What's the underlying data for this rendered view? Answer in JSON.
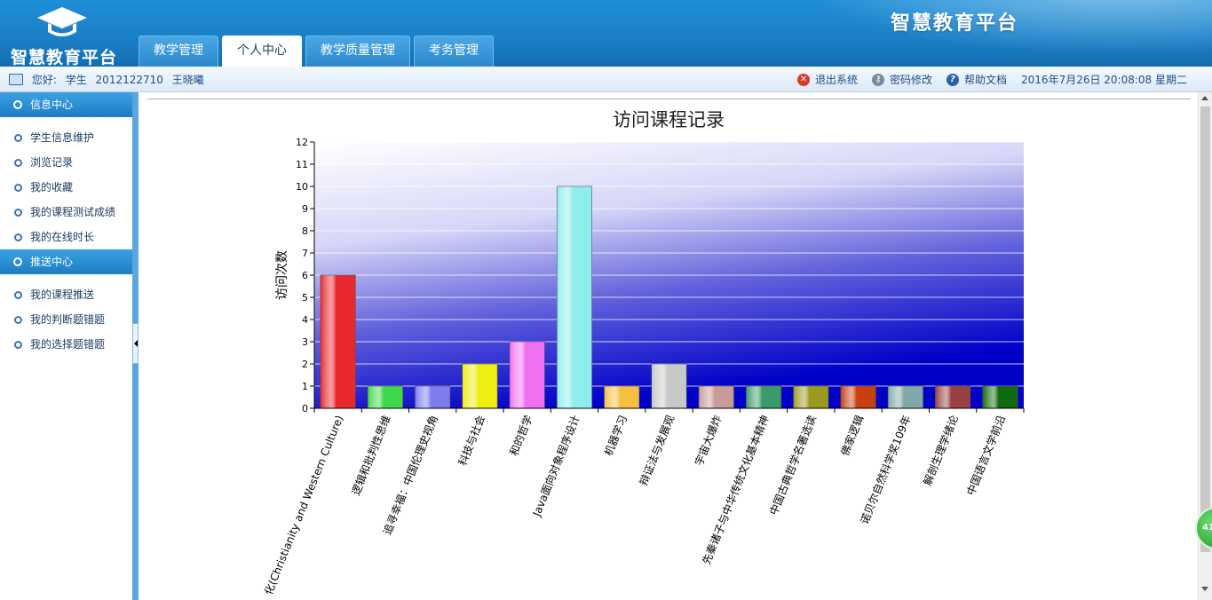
{
  "header": {
    "logo_text": "智慧教育平台",
    "brand_title": "智慧教育平台",
    "tabs": [
      {
        "label": "教学管理",
        "active": false
      },
      {
        "label": "个人中心",
        "active": true
      },
      {
        "label": "教学质量管理",
        "active": false
      },
      {
        "label": "考务管理",
        "active": false
      }
    ]
  },
  "infobar": {
    "greeting": "您好:",
    "role": "学生",
    "user_id": "2012122710",
    "user_name": "王晓曦",
    "logout_label": "退出系统",
    "password_label": "密码修改",
    "help_label": "帮助文档",
    "datetime": "2016年7月26日  20:08:08  星期二",
    "icons": {
      "logout": "close-circle-icon",
      "password": "key-icon",
      "help": "help-icon",
      "user": "monitor-icon"
    }
  },
  "sidebar": {
    "sections": [
      {
        "title": "信息中心",
        "items": [
          "学生信息维护",
          "浏览记录",
          "我的收藏",
          "我的课程测试成绩",
          "我的在线时长"
        ]
      },
      {
        "title": "推送中心",
        "items": [
          "我的课程推送",
          "我的判断题错题",
          "我的选择题错题"
        ]
      }
    ]
  },
  "float_badge": "41",
  "colors": {
    "accent": "#1a7fc6",
    "header_blue": "#1f8fd8",
    "plot_bg_dark": "#0000c8"
  },
  "chart_data": {
    "type": "bar",
    "title": "访问课程记录",
    "xlabel": "",
    "ylabel": "访问次数",
    "ylim": [
      0,
      12
    ],
    "yticks": [
      0,
      1,
      2,
      3,
      4,
      5,
      6,
      7,
      8,
      9,
      10,
      11,
      12
    ],
    "grid": true,
    "categories": [
      "化(Christianity and Western Culture)",
      "逻辑和批判性思维",
      "追寻幸福：中国伦理史视角",
      "科技与社会",
      "和的哲学",
      "Java面向对象程序设计",
      "机器学习",
      "辩证法与发展观",
      "宇宙大爆炸",
      "先秦诸子与中华传统文化基本精神",
      "中国古典哲学名著选读",
      "佛家逻辑",
      "诺贝尔自然科学奖109年",
      "解剖生理学绪论",
      "中国语言文学前沿"
    ],
    "values": [
      6,
      1,
      1,
      2,
      3,
      10,
      1,
      2,
      1,
      1,
      1,
      1,
      1,
      1,
      1
    ],
    "bar_colors": [
      "#e8282e",
      "#3ed84a",
      "#7d7df0",
      "#eeee10",
      "#f070f0",
      "#8eeeee",
      "#f3c040",
      "#c8c8c8",
      "#c89a9a",
      "#3a9a6a",
      "#9a9a20",
      "#c84010",
      "#80a8a8",
      "#9a4040",
      "#106a10"
    ]
  }
}
